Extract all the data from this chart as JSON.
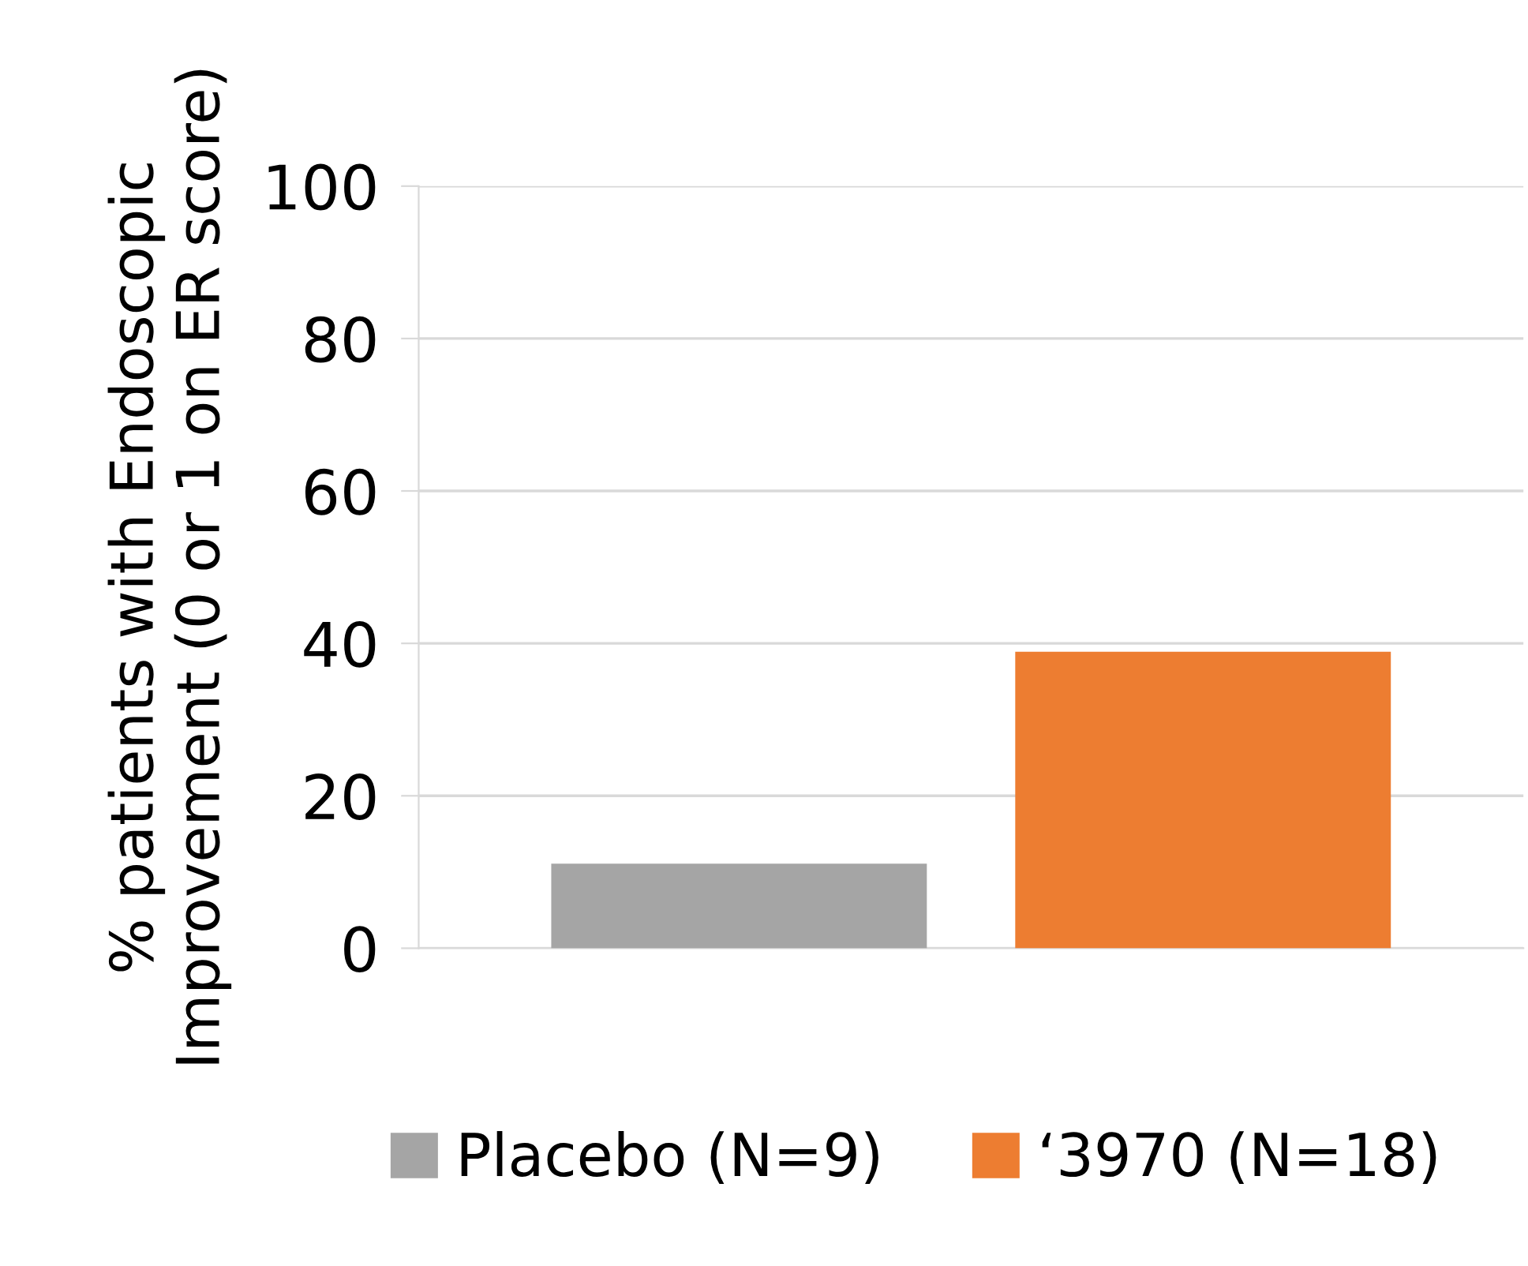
{
  "chart_data": {
    "type": "bar",
    "ylabel": "% patients with Endoscopic\nImprovement (0 or 1 on ER score)",
    "categories": [
      null
    ],
    "series": [
      {
        "name": "Placebo (N=9)",
        "color": "#a5a5a5",
        "values": [
          11.1
        ]
      },
      {
        "name": "‘3970 (N=18)",
        "color": "#ed7d31",
        "values": [
          38.9
        ]
      }
    ],
    "ylim": [
      0,
      100
    ],
    "yticks": [
      0,
      20,
      40,
      60,
      80,
      100
    ],
    "grid": "y",
    "legend": "bottom"
  }
}
